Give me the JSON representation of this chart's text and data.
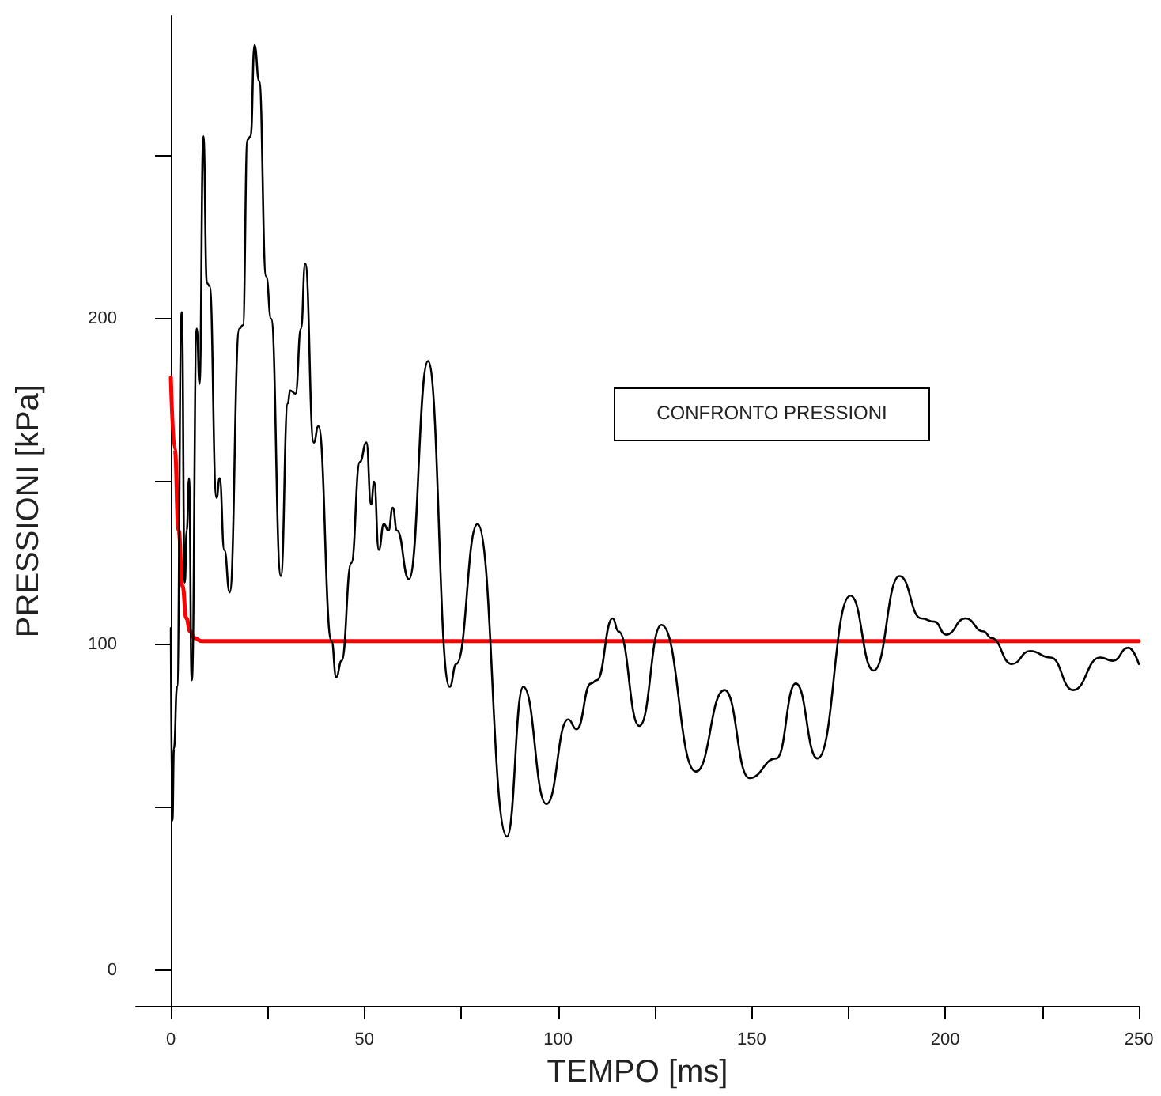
{
  "chart_data": {
    "type": "line",
    "xlabel": "TEMPO [ms]",
    "ylabel": "PRESSIONI [kPa]",
    "legend_title": "CONFRONTO PRESSIONI",
    "xlim": [
      -9,
      250
    ],
    "xticks": [
      0,
      {
        "value": 25,
        "label": null
      },
      50,
      {
        "value": 75,
        "label": null
      },
      100,
      {
        "value": 125,
        "label": null
      },
      150,
      {
        "value": 175,
        "label": null
      },
      200,
      {
        "value": 225,
        "label": null
      },
      250
    ],
    "ylim": [
      -11,
      293
    ],
    "yticks": [
      0,
      {
        "value": 50,
        "label": null
      },
      100,
      {
        "value": 150,
        "label": null
      },
      200,
      {
        "value": 250,
        "label": null
      }
    ],
    "marker": "none",
    "line_style": "solid",
    "series": [
      {
        "color": "#ff0000",
        "x": [
          0,
          1,
          2,
          3,
          4,
          5,
          6,
          8,
          10,
          250
        ],
        "values": [
          182,
          160,
          135,
          118,
          108,
          104,
          102,
          101,
          101,
          101
        ]
      },
      {
        "color": "#000000",
        "x": [
          0,
          0.4,
          0.8,
          1.6,
          2.8,
          3.6,
          4.1,
          4.7,
          5.4,
          6.7,
          7.4,
          8.4,
          9.3,
          10,
          11.8,
          12.6,
          13.8,
          15.2,
          17.7,
          18.6,
          19.8,
          20.6,
          21.6,
          22.8,
          24.6,
          25.9,
          28.4,
          30.2,
          30.8,
          32.2,
          33.6,
          34.7,
          36.9,
          38.1,
          41.5,
          42.7,
          44.1,
          46.6,
          48.8,
          50.5,
          51.7,
          52.5,
          53.7,
          55,
          56.2,
          57.3,
          58.4,
          61.5,
          66.4,
          72,
          73.7,
          79.2,
          86.8,
          91,
          97,
          102.6,
          104.8,
          108.5,
          110,
          114.1,
          115.6,
          121,
          126.7,
          135.6,
          143,
          149.4,
          156.4,
          161.4,
          167,
          175.5,
          181.5,
          188.2,
          193.8,
          197.2,
          200.2,
          205.2,
          209.9,
          211.9,
          217.2,
          221.9,
          227.2,
          233,
          240,
          243.3,
          247.3,
          250
        ],
        "values": [
          105,
          46,
          68,
          87,
          202,
          119,
          135,
          151,
          89,
          197,
          180,
          256,
          211,
          210,
          145,
          151,
          129,
          116,
          197,
          198,
          255,
          256,
          284,
          273,
          213,
          200,
          121,
          174,
          178,
          177,
          197,
          217,
          162,
          167,
          101,
          90,
          95,
          125,
          156,
          162,
          143,
          150,
          129,
          137,
          135,
          142,
          135,
          120,
          187,
          87,
          94,
          137,
          41,
          87,
          51,
          77,
          74,
          88,
          89,
          108,
          104,
          75,
          106,
          61,
          86,
          59,
          65,
          88,
          65,
          115,
          92,
          121,
          108,
          107,
          103,
          108,
          104,
          102,
          94,
          98,
          96,
          86,
          96,
          95,
          99,
          94
        ]
      }
    ]
  }
}
